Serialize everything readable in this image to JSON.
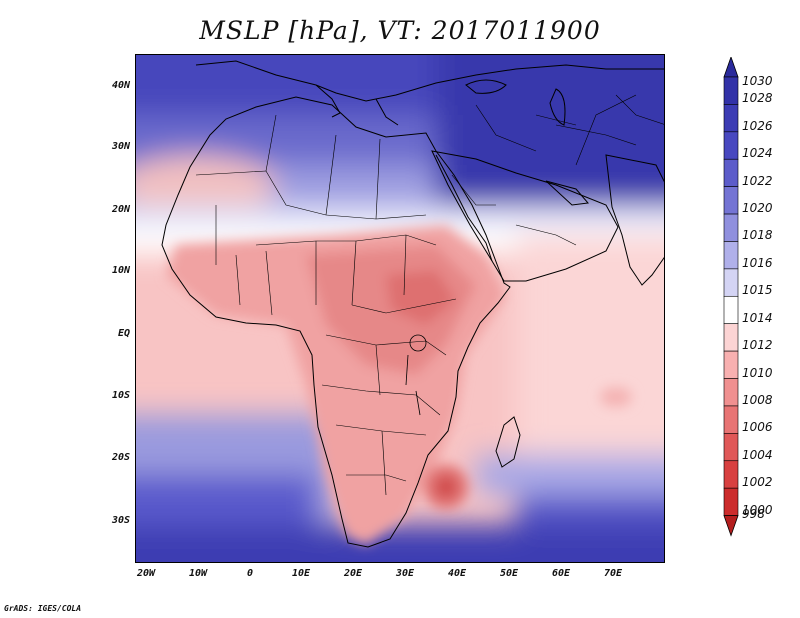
{
  "title": "MSLP [hPa], VT: 2017011900",
  "footer": "GrADS: IGES/COLA",
  "map": {
    "lat_labels": [
      "40N",
      "30N",
      "20N",
      "10N",
      "EQ",
      "10S",
      "20S",
      "30S"
    ],
    "lon_labels": [
      "20W",
      "10W",
      "0",
      "10E",
      "20E",
      "30E",
      "40E",
      "50E",
      "60E",
      "70E"
    ]
  },
  "colorbar": {
    "levels": [
      "1030",
      "1028",
      "1026",
      "1024",
      "1022",
      "1020",
      "1018",
      "1016",
      "1015",
      "1014",
      "1012",
      "1010",
      "1008",
      "1006",
      "1004",
      "1002",
      "1000",
      "998"
    ],
    "colors": [
      "#2a2a9c",
      "#3232a8",
      "#3c3cb4",
      "#4848c0",
      "#5c5cca",
      "#7474d4",
      "#9090de",
      "#b0b0ea",
      "#d4d4f4",
      "#ffffff",
      "#fcd4d4",
      "#f8b0b0",
      "#f09090",
      "#e87474",
      "#e05858",
      "#d84040",
      "#cc2c2c",
      "#b41e1e"
    ]
  }
}
